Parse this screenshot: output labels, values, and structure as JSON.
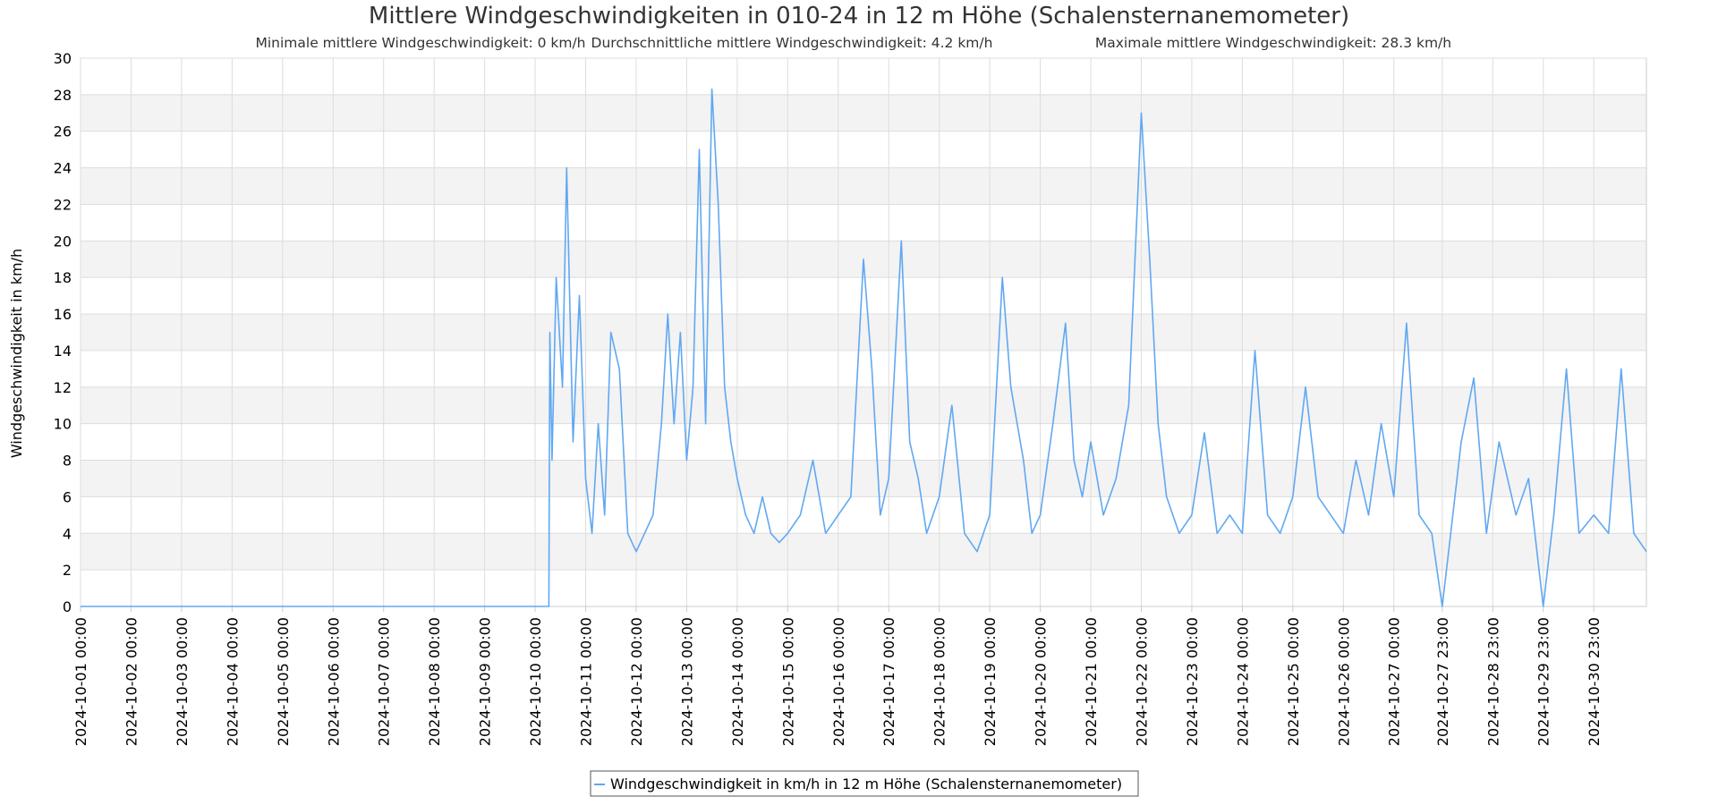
{
  "chart_data": {
    "type": "line",
    "title": "Mittlere Windgeschwindigkeiten in 010-24 in 12 m Höhe (Schalensternanemometer)",
    "subtitle": {
      "min": "Minimale mittlere Windgeschwindigkeit: 0 km/h",
      "avg": "Durchschnittliche mittlere Windgeschwindigkeit: 4.2 km/h",
      "max": "Maximale mittlere Windgeschwindigkeit: 28.3 km/h"
    },
    "xlabel": "",
    "ylabel": "Windgeschwindigkeit in km/h",
    "ylim": [
      0,
      30
    ],
    "yticks": [
      0,
      2,
      4,
      6,
      8,
      10,
      12,
      14,
      16,
      18,
      20,
      22,
      24,
      26,
      28,
      30
    ],
    "xlim": [
      "2024-10-01 00:00",
      "2024-11-01 00:00"
    ],
    "xticks": [
      "2024-10-01 00:00",
      "2024-10-02 00:00",
      "2024-10-03 00:00",
      "2024-10-04 00:00",
      "2024-10-05 00:00",
      "2024-10-06 00:00",
      "2024-10-07 00:00",
      "2024-10-08 00:00",
      "2024-10-09 00:00",
      "2024-10-10 00:00",
      "2024-10-11 00:00",
      "2024-10-12 00:00",
      "2024-10-13 00:00",
      "2024-10-14 00:00",
      "2024-10-15 00:00",
      "2024-10-16 00:00",
      "2024-10-17 00:00",
      "2024-10-18 00:00",
      "2024-10-19 00:00",
      "2024-10-20 00:00",
      "2024-10-21 00:00",
      "2024-10-22 00:00",
      "2024-10-23 00:00",
      "2024-10-24 00:00",
      "2024-10-25 00:00",
      "2024-10-26 00:00",
      "2024-10-27 00:00",
      "2024-10-27 23:00",
      "2024-10-28 23:00",
      "2024-10-29 23:00",
      "2024-10-30 23:00"
    ],
    "grid": true,
    "legend_position": "bottom-center",
    "series": [
      {
        "name": "Windgeschwindigkeit in km/h in 12 m Höhe (Schalensternanemometer)",
        "color": "#60a8f2",
        "points": [
          [
            "2024-10-01 00:00",
            0
          ],
          [
            "2024-10-10 06:00",
            0
          ],
          [
            "2024-10-10 06:30",
            0
          ],
          [
            "2024-10-10 07:00",
            15
          ],
          [
            "2024-10-10 08:00",
            8
          ],
          [
            "2024-10-10 10:00",
            18
          ],
          [
            "2024-10-10 13:00",
            12
          ],
          [
            "2024-10-10 15:00",
            24
          ],
          [
            "2024-10-10 18:00",
            9
          ],
          [
            "2024-10-10 21:00",
            17
          ],
          [
            "2024-10-11 00:00",
            7
          ],
          [
            "2024-10-11 03:00",
            4
          ],
          [
            "2024-10-11 06:00",
            10
          ],
          [
            "2024-10-11 09:00",
            5
          ],
          [
            "2024-10-11 12:00",
            15
          ],
          [
            "2024-10-11 16:00",
            13
          ],
          [
            "2024-10-11 20:00",
            4
          ],
          [
            "2024-10-12 00:00",
            3
          ],
          [
            "2024-10-12 04:00",
            4
          ],
          [
            "2024-10-12 08:00",
            5
          ],
          [
            "2024-10-12 12:00",
            10
          ],
          [
            "2024-10-12 15:00",
            16
          ],
          [
            "2024-10-12 18:00",
            10
          ],
          [
            "2024-10-12 21:00",
            15
          ],
          [
            "2024-10-13 00:00",
            8
          ],
          [
            "2024-10-13 03:00",
            12
          ],
          [
            "2024-10-13 06:00",
            25
          ],
          [
            "2024-10-13 09:00",
            10
          ],
          [
            "2024-10-13 12:00",
            28.3
          ],
          [
            "2024-10-13 15:00",
            22
          ],
          [
            "2024-10-13 18:00",
            12
          ],
          [
            "2024-10-13 21:00",
            9
          ],
          [
            "2024-10-14 00:00",
            7
          ],
          [
            "2024-10-14 04:00",
            5
          ],
          [
            "2024-10-14 08:00",
            4
          ],
          [
            "2024-10-14 12:00",
            6
          ],
          [
            "2024-10-14 16:00",
            4
          ],
          [
            "2024-10-14 20:00",
            3.5
          ],
          [
            "2024-10-15 00:00",
            4
          ],
          [
            "2024-10-15 06:00",
            5
          ],
          [
            "2024-10-15 12:00",
            8
          ],
          [
            "2024-10-15 18:00",
            4
          ],
          [
            "2024-10-16 00:00",
            5
          ],
          [
            "2024-10-16 06:00",
            6
          ],
          [
            "2024-10-16 12:00",
            19
          ],
          [
            "2024-10-16 16:00",
            13
          ],
          [
            "2024-10-16 20:00",
            5
          ],
          [
            "2024-10-17 00:00",
            7
          ],
          [
            "2024-10-17 06:00",
            20
          ],
          [
            "2024-10-17 10:00",
            9
          ],
          [
            "2024-10-17 14:00",
            7
          ],
          [
            "2024-10-17 18:00",
            4
          ],
          [
            "2024-10-18 00:00",
            6
          ],
          [
            "2024-10-18 06:00",
            11
          ],
          [
            "2024-10-18 12:00",
            4
          ],
          [
            "2024-10-18 18:00",
            3
          ],
          [
            "2024-10-19 00:00",
            5
          ],
          [
            "2024-10-19 06:00",
            18
          ],
          [
            "2024-10-19 10:00",
            12
          ],
          [
            "2024-10-19 16:00",
            8
          ],
          [
            "2024-10-19 20:00",
            4
          ],
          [
            "2024-10-20 00:00",
            5
          ],
          [
            "2024-10-20 06:00",
            10
          ],
          [
            "2024-10-20 12:00",
            15.5
          ],
          [
            "2024-10-20 16:00",
            8
          ],
          [
            "2024-10-20 20:00",
            6
          ],
          [
            "2024-10-21 00:00",
            9
          ],
          [
            "2024-10-21 06:00",
            5
          ],
          [
            "2024-10-21 12:00",
            7
          ],
          [
            "2024-10-21 18:00",
            11
          ],
          [
            "2024-10-22 00:00",
            27
          ],
          [
            "2024-10-22 04:00",
            19
          ],
          [
            "2024-10-22 08:00",
            10
          ],
          [
            "2024-10-22 12:00",
            6
          ],
          [
            "2024-10-22 18:00",
            4
          ],
          [
            "2024-10-23 00:00",
            5
          ],
          [
            "2024-10-23 06:00",
            9.5
          ],
          [
            "2024-10-23 12:00",
            4
          ],
          [
            "2024-10-23 18:00",
            5
          ],
          [
            "2024-10-24 00:00",
            4
          ],
          [
            "2024-10-24 06:00",
            14
          ],
          [
            "2024-10-24 12:00",
            5
          ],
          [
            "2024-10-24 18:00",
            4
          ],
          [
            "2024-10-25 00:00",
            6
          ],
          [
            "2024-10-25 06:00",
            12
          ],
          [
            "2024-10-25 12:00",
            6
          ],
          [
            "2024-10-25 18:00",
            5
          ],
          [
            "2024-10-26 00:00",
            4
          ],
          [
            "2024-10-26 06:00",
            8
          ],
          [
            "2024-10-26 12:00",
            5
          ],
          [
            "2024-10-26 18:00",
            10
          ],
          [
            "2024-10-27 00:00",
            6
          ],
          [
            "2024-10-27 06:00",
            15.5
          ],
          [
            "2024-10-27 12:00",
            5
          ],
          [
            "2024-10-27 18:00",
            4
          ],
          [
            "2024-10-27 23:00",
            0
          ],
          [
            "2024-10-28 03:00",
            4
          ],
          [
            "2024-10-28 08:00",
            9
          ],
          [
            "2024-10-28 14:00",
            12.5
          ],
          [
            "2024-10-28 20:00",
            4
          ],
          [
            "2024-10-29 02:00",
            9
          ],
          [
            "2024-10-29 10:00",
            5
          ],
          [
            "2024-10-29 16:00",
            7
          ],
          [
            "2024-10-29 23:00",
            0
          ],
          [
            "2024-10-30 04:00",
            5
          ],
          [
            "2024-10-30 10:00",
            13
          ],
          [
            "2024-10-30 16:00",
            4
          ],
          [
            "2024-10-30 23:00",
            5
          ],
          [
            "2024-10-31 06:00",
            4
          ],
          [
            "2024-10-31 12:00",
            13
          ],
          [
            "2024-10-31 18:00",
            4
          ],
          [
            "2024-11-01 00:00",
            3
          ]
        ]
      }
    ]
  }
}
